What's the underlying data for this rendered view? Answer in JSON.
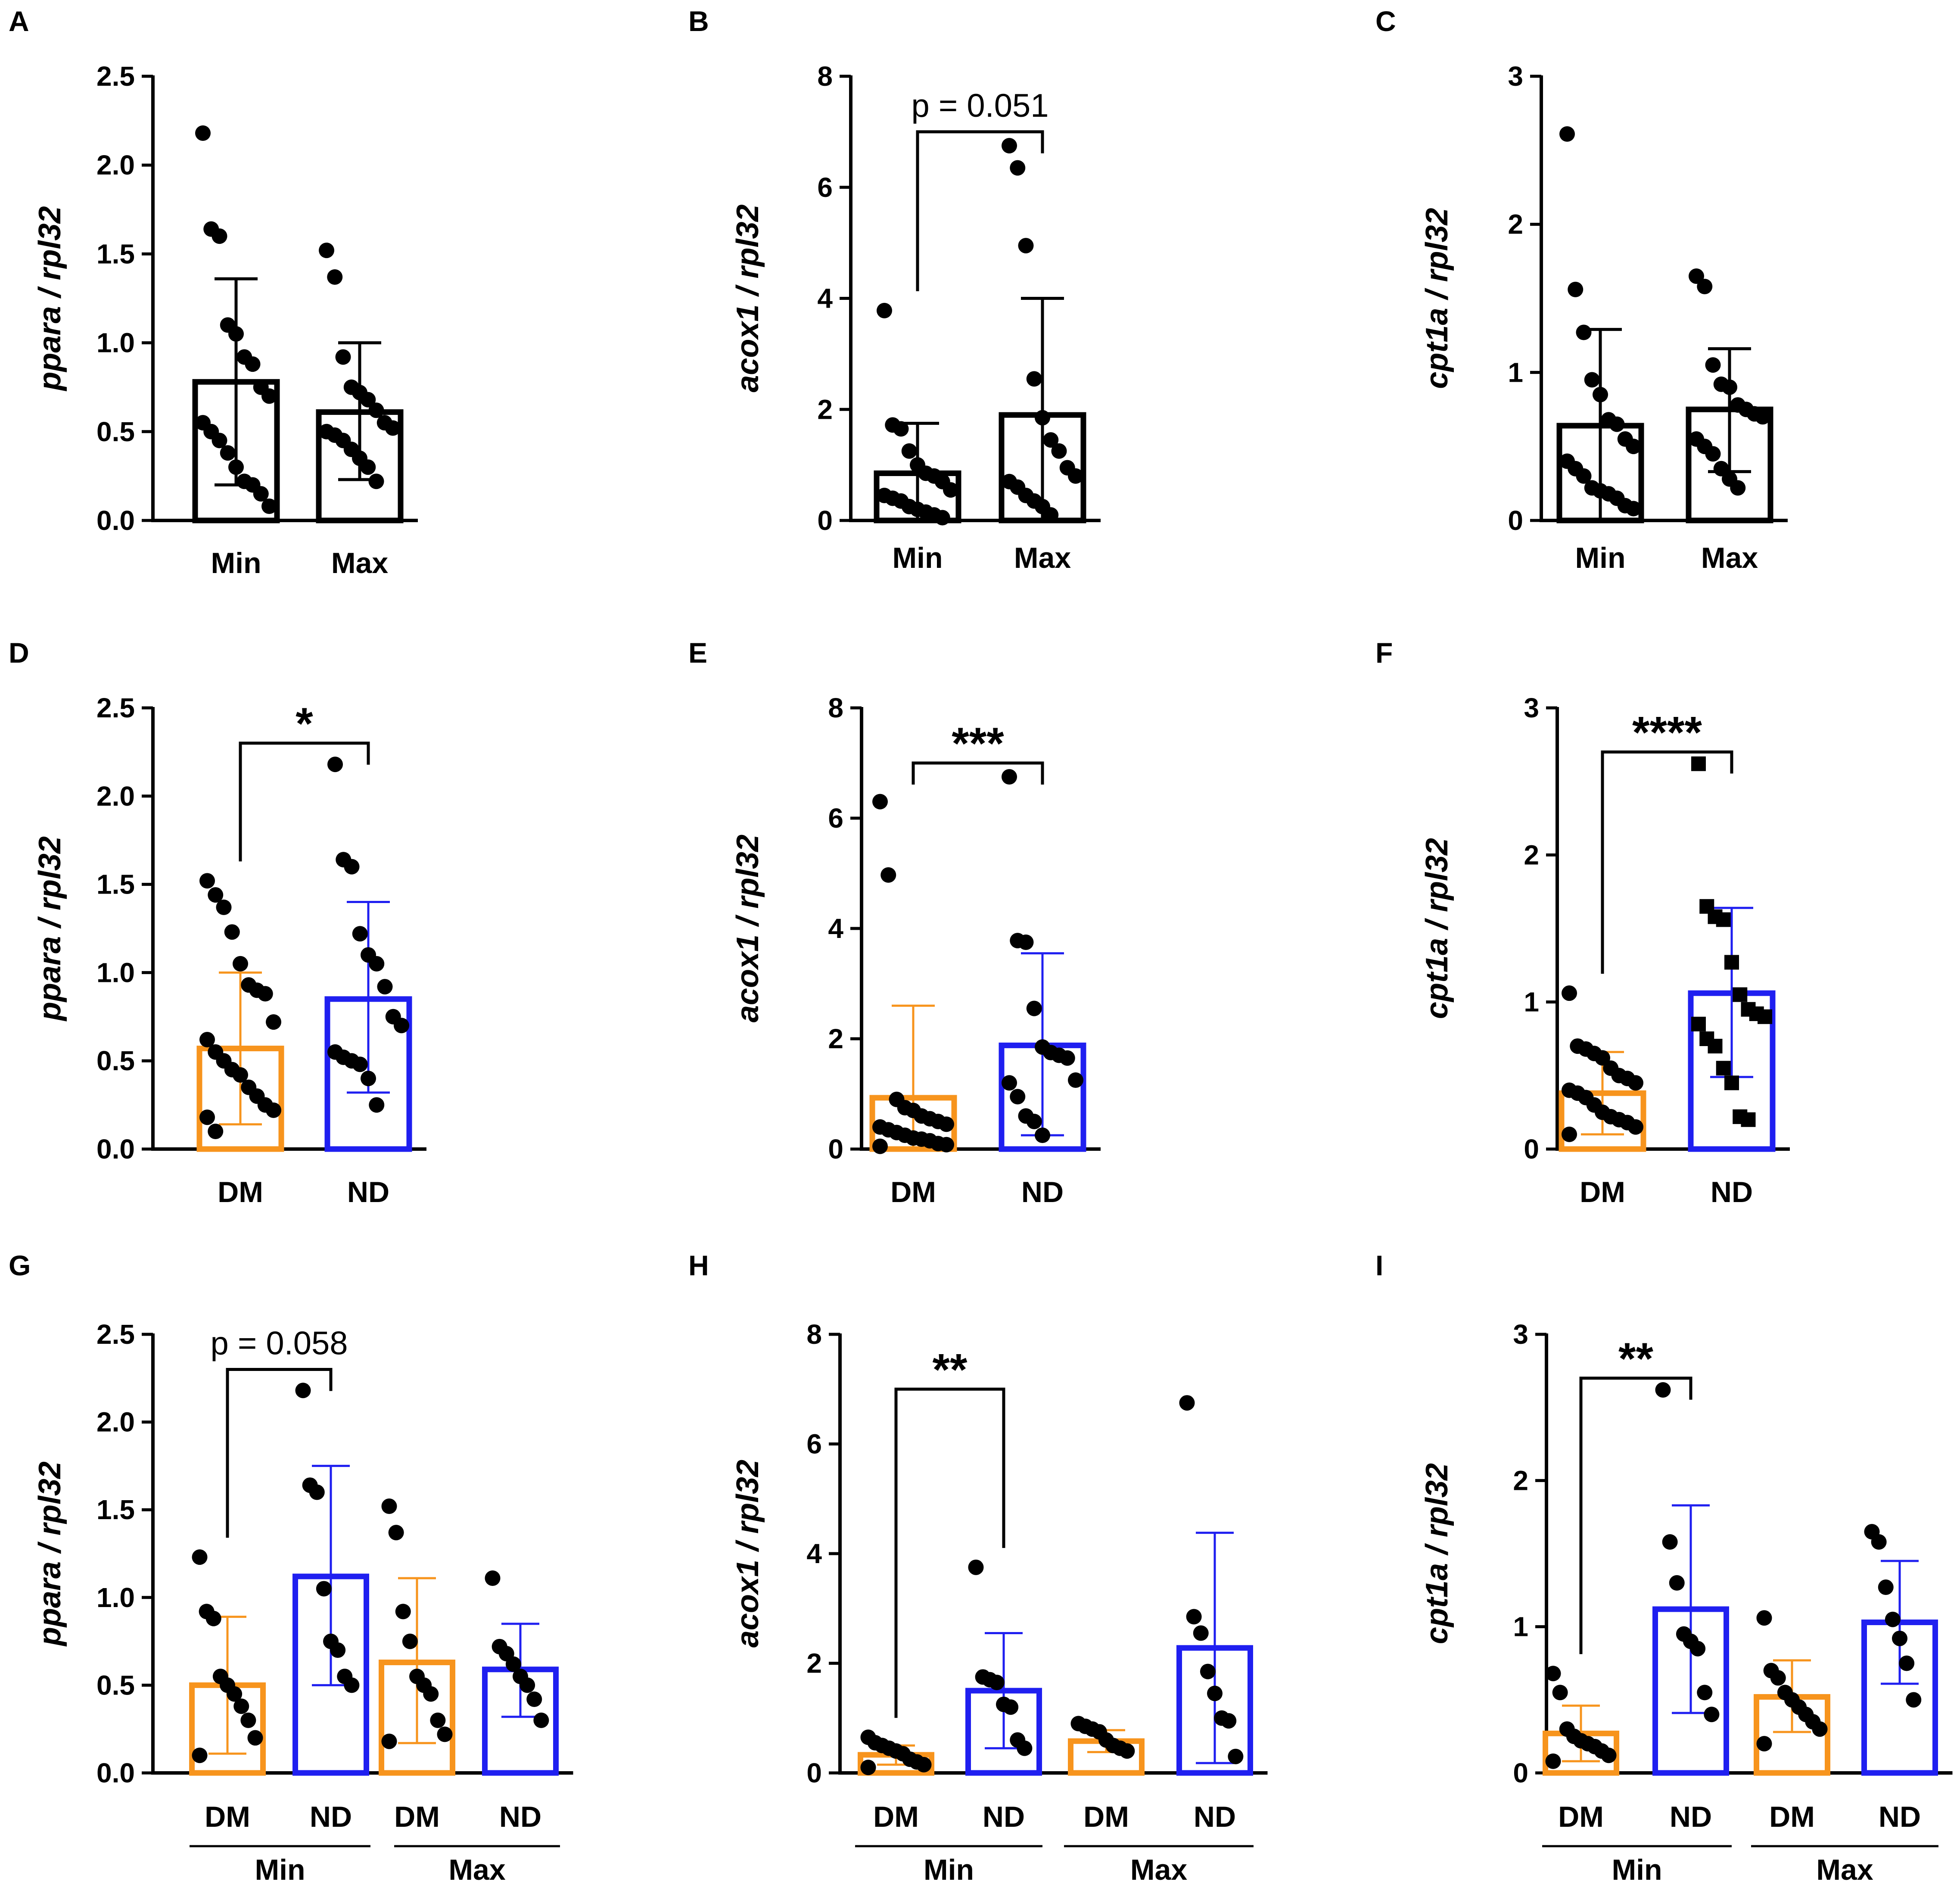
{
  "figure": {
    "background": "#ffffff"
  },
  "colors": {
    "black": "#000000",
    "orange": "#F7941D",
    "blue": "#1F1FF0"
  },
  "chart_data": [
    {
      "panel": "A",
      "type": "bar",
      "ylabel": "ppara / rpl32",
      "yticks": [
        0.0,
        0.5,
        1.0,
        1.5,
        2.0,
        2.5
      ],
      "ytick_labels": [
        "0.0",
        "0.5",
        "1.0",
        "1.5",
        "2.0",
        "2.5"
      ],
      "ylim": [
        0,
        2.5
      ],
      "categories": [
        "Min",
        "Max"
      ],
      "group_labels": [],
      "annotation": null,
      "bars": [
        {
          "label": "Min",
          "mean": 0.78,
          "sd_upper": 1.36,
          "sd_lower": 0.2,
          "color": "black",
          "marker": "circle",
          "points": [
            2.18,
            1.64,
            1.6,
            1.1,
            1.05,
            0.92,
            0.88,
            0.75,
            0.7,
            0.55,
            0.5,
            0.45,
            0.38,
            0.3,
            0.22,
            0.2,
            0.15,
            0.08
          ]
        },
        {
          "label": "Max",
          "mean": 0.61,
          "sd_upper": 1.0,
          "sd_lower": 0.23,
          "color": "black",
          "marker": "circle",
          "points": [
            1.52,
            1.37,
            0.92,
            0.75,
            0.72,
            0.68,
            0.62,
            0.55,
            0.52,
            0.5,
            0.48,
            0.45,
            0.4,
            0.35,
            0.3,
            0.22
          ]
        }
      ]
    },
    {
      "panel": "B",
      "type": "bar",
      "ylabel": "acox1 / rpl32",
      "yticks": [
        0,
        2,
        4,
        6,
        8
      ],
      "ytick_labels": [
        "0",
        "2",
        "4",
        "6",
        "8"
      ],
      "ylim": [
        0,
        8
      ],
      "categories": [
        "Min",
        "Max"
      ],
      "group_labels": [],
      "annotation": {
        "text": "p = 0.051",
        "from": 0,
        "to": 1,
        "y": 7.0,
        "style": "text"
      },
      "bars": [
        {
          "label": "Min",
          "mean": 0.85,
          "sd_upper": 1.75,
          "sd_lower": 0.0,
          "color": "black",
          "marker": "circle",
          "points": [
            3.78,
            1.72,
            1.65,
            1.25,
            1.0,
            0.85,
            0.8,
            0.7,
            0.55,
            0.45,
            0.4,
            0.35,
            0.25,
            0.2,
            0.15,
            0.1,
            0.05
          ]
        },
        {
          "label": "Max",
          "mean": 1.9,
          "sd_upper": 4.0,
          "sd_lower": 0.0,
          "color": "black",
          "marker": "circle",
          "points": [
            6.75,
            6.35,
            4.95,
            2.55,
            1.85,
            1.45,
            1.25,
            0.95,
            0.8,
            0.7,
            0.6,
            0.45,
            0.35,
            0.25,
            0.1
          ]
        }
      ]
    },
    {
      "panel": "C",
      "type": "bar",
      "ylabel": "cpt1a / rpl32",
      "yticks": [
        0,
        1,
        2,
        3
      ],
      "ytick_labels": [
        "0",
        "1",
        "2",
        "3"
      ],
      "ylim": [
        0,
        3
      ],
      "categories": [
        "Min",
        "Max"
      ],
      "group_labels": [],
      "annotation": null,
      "bars": [
        {
          "label": "Min",
          "mean": 0.64,
          "sd_upper": 1.29,
          "sd_lower": 0.0,
          "color": "black",
          "marker": "circle",
          "points": [
            2.61,
            1.56,
            1.27,
            0.95,
            0.85,
            0.68,
            0.65,
            0.55,
            0.5,
            0.4,
            0.35,
            0.3,
            0.22,
            0.2,
            0.18,
            0.15,
            0.1,
            0.08
          ]
        },
        {
          "label": "Max",
          "mean": 0.75,
          "sd_upper": 1.16,
          "sd_lower": 0.33,
          "color": "black",
          "marker": "circle",
          "points": [
            1.65,
            1.58,
            1.05,
            0.92,
            0.9,
            0.78,
            0.75,
            0.72,
            0.7,
            0.55,
            0.5,
            0.45,
            0.35,
            0.28,
            0.22
          ]
        }
      ]
    },
    {
      "panel": "D",
      "type": "bar",
      "ylabel": "ppara / rpl32",
      "yticks": [
        0.0,
        0.5,
        1.0,
        1.5,
        2.0,
        2.5
      ],
      "ytick_labels": [
        "0.0",
        "0.5",
        "1.0",
        "1.5",
        "2.0",
        "2.5"
      ],
      "ylim": [
        0,
        2.5
      ],
      "categories": [
        "DM",
        "ND"
      ],
      "group_labels": [],
      "annotation": {
        "text": "*",
        "from": 0,
        "to": 1,
        "y": 2.3,
        "style": "star"
      },
      "bars": [
        {
          "label": "DM",
          "mean": 0.57,
          "sd_upper": 1.0,
          "sd_lower": 0.14,
          "color": "orange",
          "marker": "circle",
          "points": [
            1.52,
            1.44,
            1.37,
            1.23,
            1.05,
            0.93,
            0.9,
            0.88,
            0.72,
            0.62,
            0.55,
            0.5,
            0.45,
            0.42,
            0.35,
            0.3,
            0.25,
            0.22,
            0.18,
            0.1
          ]
        },
        {
          "label": "ND",
          "mean": 0.85,
          "sd_upper": 1.4,
          "sd_lower": 0.32,
          "color": "blue",
          "marker": "circle",
          "points": [
            2.18,
            1.64,
            1.6,
            1.22,
            1.1,
            1.05,
            0.92,
            0.75,
            0.7,
            0.55,
            0.52,
            0.5,
            0.48,
            0.4,
            0.25
          ]
        }
      ]
    },
    {
      "panel": "E",
      "type": "bar",
      "ylabel": "acox1 / rpl32",
      "yticks": [
        0,
        2,
        4,
        6,
        8
      ],
      "ytick_labels": [
        "0",
        "2",
        "4",
        "6",
        "8"
      ],
      "ylim": [
        0,
        8
      ],
      "categories": [
        "DM",
        "ND"
      ],
      "group_labels": [],
      "annotation": {
        "text": "***",
        "from": 0,
        "to": 1,
        "y": 7.0,
        "style": "star"
      },
      "bars": [
        {
          "label": "DM",
          "mean": 0.93,
          "sd_upper": 2.6,
          "sd_lower": 0.0,
          "color": "orange",
          "marker": "circle",
          "points": [
            6.3,
            4.97,
            0.9,
            0.75,
            0.7,
            0.6,
            0.55,
            0.5,
            0.45,
            0.4,
            0.35,
            0.3,
            0.25,
            0.2,
            0.18,
            0.15,
            0.1,
            0.08,
            0.05
          ]
        },
        {
          "label": "ND",
          "mean": 1.88,
          "sd_upper": 3.55,
          "sd_lower": 0.25,
          "color": "blue",
          "marker": "circle",
          "points": [
            6.75,
            3.78,
            3.75,
            2.55,
            1.85,
            1.75,
            1.7,
            1.65,
            1.25,
            1.2,
            0.95,
            0.6,
            0.5,
            0.25
          ]
        }
      ]
    },
    {
      "panel": "F",
      "type": "bar",
      "ylabel": "cpt1a / rpl32",
      "yticks": [
        0,
        1,
        2,
        3
      ],
      "ytick_labels": [
        "0",
        "1",
        "2",
        "3"
      ],
      "ylim": [
        0,
        3
      ],
      "categories": [
        "DM",
        "ND"
      ],
      "group_labels": [],
      "annotation": {
        "text": "****",
        "from": 0,
        "to": 1,
        "y": 2.7,
        "style": "star"
      },
      "bars": [
        {
          "label": "DM",
          "mean": 0.38,
          "sd_upper": 0.66,
          "sd_lower": 0.1,
          "color": "orange",
          "marker": "circle",
          "points": [
            1.06,
            0.7,
            0.68,
            0.65,
            0.62,
            0.55,
            0.5,
            0.48,
            0.45,
            0.4,
            0.38,
            0.35,
            0.3,
            0.25,
            0.22,
            0.2,
            0.18,
            0.15,
            0.1
          ]
        },
        {
          "label": "ND",
          "mean": 1.06,
          "sd_upper": 1.64,
          "sd_lower": 0.49,
          "color": "blue",
          "marker": "square",
          "points": [
            2.62,
            1.65,
            1.58,
            1.56,
            1.27,
            1.05,
            0.95,
            0.92,
            0.9,
            0.85,
            0.75,
            0.7,
            0.55,
            0.45,
            0.22,
            0.2
          ]
        }
      ]
    },
    {
      "panel": "G",
      "type": "bar",
      "ylabel": "ppara / rpl32",
      "yticks": [
        0.0,
        0.5,
        1.0,
        1.5,
        2.0,
        2.5
      ],
      "ytick_labels": [
        "0.0",
        "0.5",
        "1.0",
        "1.5",
        "2.0",
        "2.5"
      ],
      "ylim": [
        0,
        2.5
      ],
      "categories": [
        "DM",
        "ND",
        "DM",
        "ND"
      ],
      "group_labels": [
        "Min",
        "Max"
      ],
      "annotation": {
        "text": "p = 0.058",
        "from": 0,
        "to": 1,
        "y": 2.3,
        "style": "text"
      },
      "bars": [
        {
          "label": "DM",
          "mean": 0.5,
          "sd_upper": 0.89,
          "sd_lower": 0.11,
          "color": "orange",
          "marker": "circle",
          "points": [
            1.23,
            0.92,
            0.88,
            0.55,
            0.5,
            0.45,
            0.38,
            0.3,
            0.2,
            0.1
          ]
        },
        {
          "label": "ND",
          "mean": 1.12,
          "sd_upper": 1.75,
          "sd_lower": 0.5,
          "color": "blue",
          "marker": "circle",
          "points": [
            2.18,
            1.64,
            1.6,
            1.05,
            0.75,
            0.7,
            0.55,
            0.5
          ]
        },
        {
          "label": "DM",
          "mean": 0.63,
          "sd_upper": 1.11,
          "sd_lower": 0.17,
          "color": "orange",
          "marker": "circle",
          "points": [
            1.52,
            1.37,
            0.92,
            0.75,
            0.55,
            0.5,
            0.45,
            0.3,
            0.22,
            0.18
          ]
        },
        {
          "label": "ND",
          "mean": 0.59,
          "sd_upper": 0.85,
          "sd_lower": 0.32,
          "color": "blue",
          "marker": "circle",
          "points": [
            1.11,
            0.72,
            0.68,
            0.62,
            0.55,
            0.5,
            0.42,
            0.3
          ]
        }
      ]
    },
    {
      "panel": "H",
      "type": "bar",
      "ylabel": "acox1 / rpl32",
      "yticks": [
        0,
        2,
        4,
        6,
        8
      ],
      "ytick_labels": [
        "0",
        "2",
        "4",
        "6",
        "8"
      ],
      "ylim": [
        0,
        8
      ],
      "categories": [
        "DM",
        "ND",
        "DM",
        "ND"
      ],
      "group_labels": [
        "Min",
        "Max"
      ],
      "annotation": {
        "text": "**",
        "from": 0,
        "to": 1,
        "y": 7.0,
        "style": "star"
      },
      "bars": [
        {
          "label": "DM",
          "mean": 0.33,
          "sd_upper": 0.5,
          "sd_lower": 0.15,
          "color": "orange",
          "marker": "circle",
          "points": [
            0.65,
            0.55,
            0.5,
            0.45,
            0.4,
            0.35,
            0.25,
            0.2,
            0.15,
            0.1
          ]
        },
        {
          "label": "ND",
          "mean": 1.5,
          "sd_upper": 2.55,
          "sd_lower": 0.45,
          "color": "blue",
          "marker": "circle",
          "points": [
            3.75,
            1.75,
            1.7,
            1.65,
            1.25,
            1.2,
            0.6,
            0.45
          ]
        },
        {
          "label": "DM",
          "mean": 0.58,
          "sd_upper": 0.78,
          "sd_lower": 0.38,
          "color": "orange",
          "marker": "circle",
          "points": [
            0.9,
            0.85,
            0.8,
            0.75,
            0.6,
            0.5,
            0.45,
            0.4
          ]
        },
        {
          "label": "ND",
          "mean": 2.28,
          "sd_upper": 4.38,
          "sd_lower": 0.18,
          "color": "blue",
          "marker": "circle",
          "points": [
            6.75,
            2.85,
            2.55,
            1.85,
            1.45,
            1.0,
            0.95,
            0.3
          ]
        }
      ]
    },
    {
      "panel": "I",
      "type": "bar",
      "ylabel": "cpt1a / rpl32",
      "yticks": [
        0,
        1,
        2,
        3
      ],
      "ytick_labels": [
        "0",
        "1",
        "2",
        "3"
      ],
      "ylim": [
        0,
        3
      ],
      "categories": [
        "DM",
        "ND",
        "DM",
        "ND"
      ],
      "group_labels": [
        "Min",
        "Max"
      ],
      "annotation": {
        "text": "**",
        "from": 0,
        "to": 1,
        "y": 2.7,
        "style": "star"
      },
      "bars": [
        {
          "label": "DM",
          "mean": 0.27,
          "sd_upper": 0.46,
          "sd_lower": 0.08,
          "color": "orange",
          "marker": "circle",
          "points": [
            0.68,
            0.55,
            0.3,
            0.25,
            0.22,
            0.2,
            0.18,
            0.15,
            0.12,
            0.08
          ]
        },
        {
          "label": "ND",
          "mean": 1.12,
          "sd_upper": 1.83,
          "sd_lower": 0.41,
          "color": "blue",
          "marker": "circle",
          "points": [
            2.62,
            1.58,
            1.3,
            0.95,
            0.9,
            0.85,
            0.55,
            0.4
          ]
        },
        {
          "label": "DM",
          "mean": 0.52,
          "sd_upper": 0.77,
          "sd_lower": 0.28,
          "color": "orange",
          "marker": "circle",
          "points": [
            1.06,
            0.7,
            0.65,
            0.55,
            0.5,
            0.45,
            0.4,
            0.35,
            0.3,
            0.2
          ]
        },
        {
          "label": "ND",
          "mean": 1.03,
          "sd_upper": 1.45,
          "sd_lower": 0.61,
          "color": "blue",
          "marker": "circle",
          "points": [
            1.65,
            1.58,
            1.27,
            1.05,
            0.92,
            0.75,
            0.5
          ]
        }
      ]
    }
  ]
}
